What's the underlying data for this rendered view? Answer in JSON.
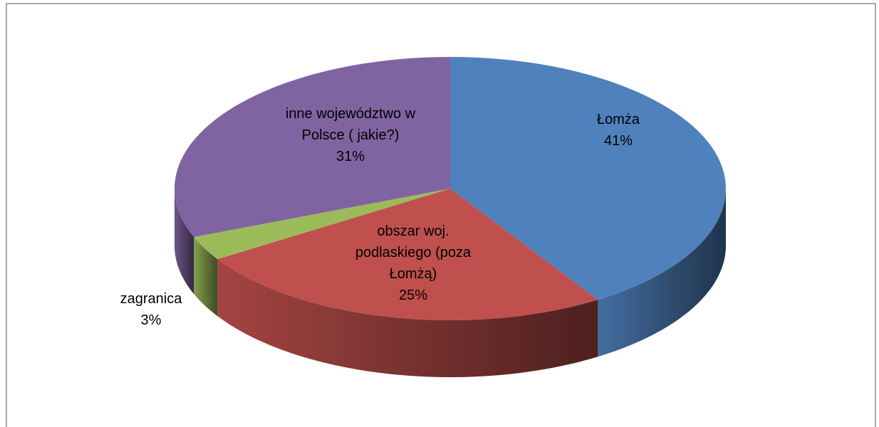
{
  "chart_data": {
    "type": "pie",
    "categories": [
      "Łomża",
      "obszar woj. podlaskiego (poza Łomżą)",
      "zagranica",
      "inne województwo w Polsce ( jakie?)"
    ],
    "values": [
      41,
      25,
      3,
      31
    ],
    "value_labels": [
      "41%",
      "25%",
      "3%",
      "31%"
    ],
    "colors": [
      "#4f81bd",
      "#c0504d",
      "#9bbb59",
      "#8064a2"
    ]
  }
}
